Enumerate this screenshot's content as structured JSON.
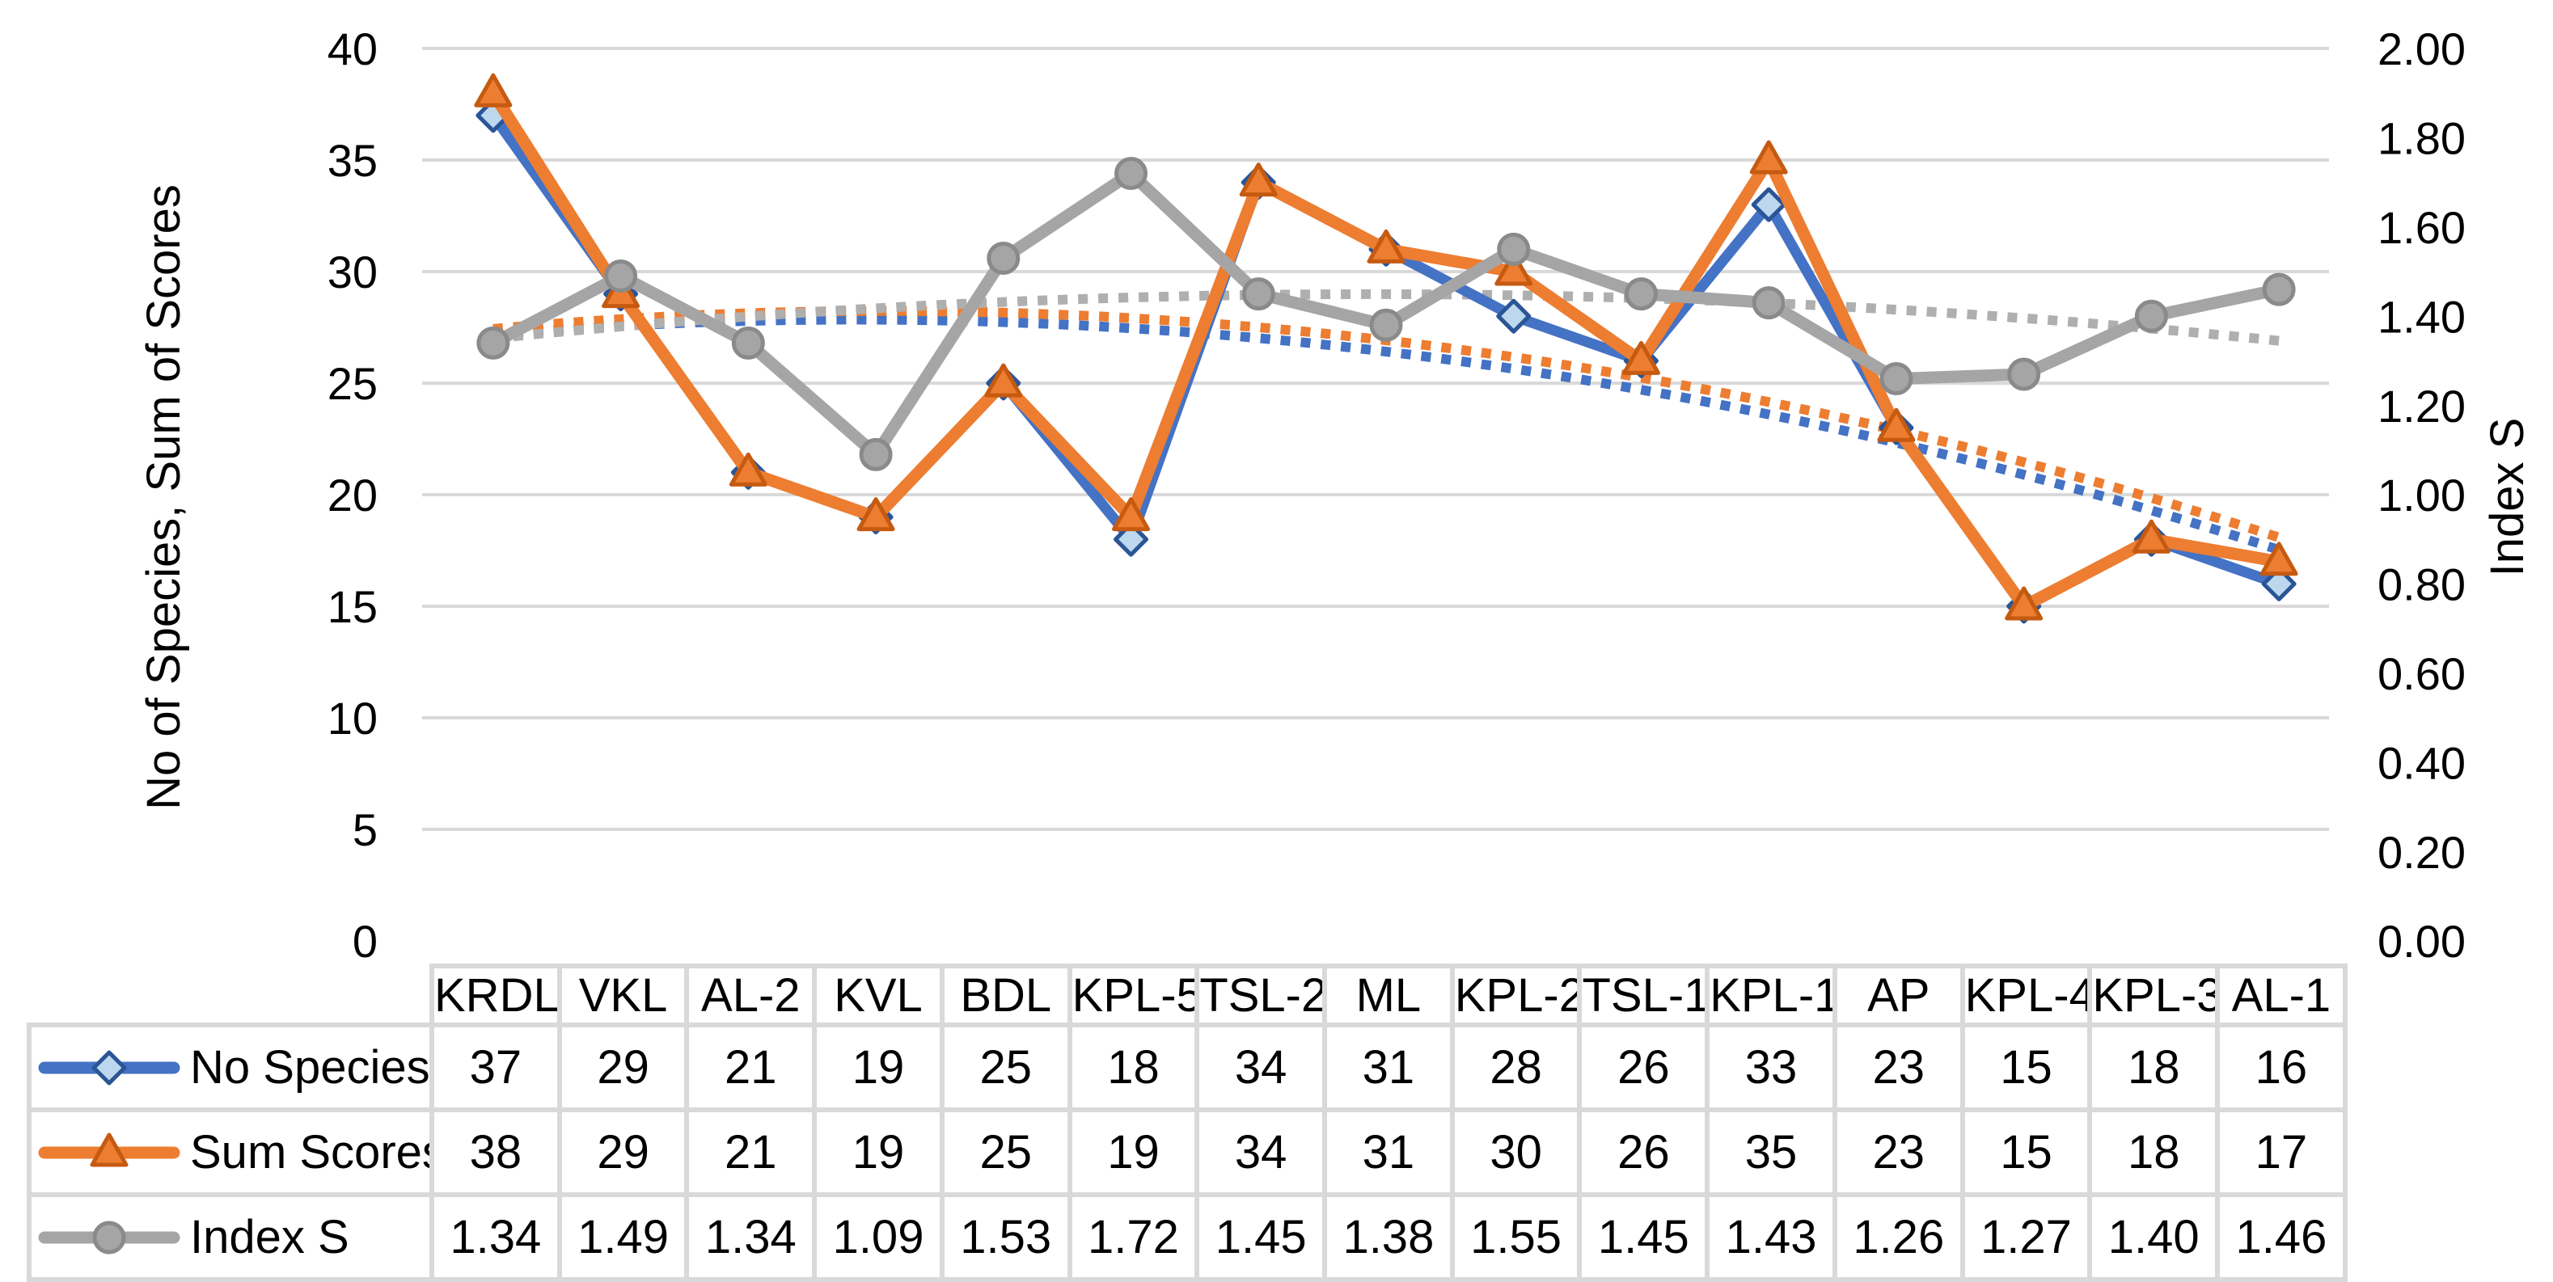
{
  "chart_data": {
    "type": "line",
    "title": "",
    "categories": [
      "KRDL",
      "VKL",
      "AL-2",
      "KVL",
      "BDL",
      "KPL-5",
      "TSL-2",
      "ML",
      "KPL-2",
      "TSL-1",
      "KPL-1",
      "AP",
      "KPL-4",
      "KPL-3",
      "AL-1"
    ],
    "series": [
      {
        "name": "No Species",
        "axis": "left",
        "marker": "diamond",
        "line_color": "#4472C4",
        "marker_fill": "#BDD7EE",
        "marker_stroke": "#2A5596",
        "trend_color": "#4472C4",
        "values": [
          37,
          29,
          21,
          19,
          25,
          18,
          34,
          31,
          28,
          26,
          33,
          23,
          15,
          18,
          16
        ],
        "display": [
          "37",
          "29",
          "21",
          "19",
          "25",
          "18",
          "34",
          "31",
          "28",
          "26",
          "33",
          "23",
          "15",
          "18",
          "16"
        ]
      },
      {
        "name": "Sum Scores",
        "axis": "left",
        "marker": "triangle",
        "line_color": "#ED7D31",
        "marker_fill": "#ED7D31",
        "marker_stroke": "#C55A11",
        "trend_color": "#ED7D31",
        "values": [
          38,
          29,
          21,
          19,
          25,
          19,
          34,
          31,
          30,
          26,
          35,
          23,
          15,
          18,
          17
        ],
        "display": [
          "38",
          "29",
          "21",
          "19",
          "25",
          "19",
          "34",
          "31",
          "30",
          "26",
          "35",
          "23",
          "15",
          "18",
          "17"
        ]
      },
      {
        "name": "Index S",
        "axis": "right",
        "marker": "circle",
        "line_color": "#A5A5A5",
        "marker_fill": "#A5A5A5",
        "marker_stroke": "#8A8A8A",
        "trend_color": "#AFAFAF",
        "values": [
          1.34,
          1.49,
          1.34,
          1.09,
          1.53,
          1.72,
          1.45,
          1.38,
          1.55,
          1.45,
          1.43,
          1.26,
          1.27,
          1.4,
          1.46
        ],
        "display": [
          "1.34",
          "1.49",
          "1.34",
          "1.09",
          "1.53",
          "1.72",
          "1.45",
          "1.38",
          "1.55",
          "1.45",
          "1.43",
          "1.26",
          "1.27",
          "1.40",
          "1.46"
        ]
      }
    ],
    "left_axis": {
      "title": "No of Species, Sum of Scores",
      "min": 0,
      "max": 40,
      "step": 5,
      "ticks": [
        "40",
        "35",
        "30",
        "25",
        "20",
        "15",
        "10",
        "5",
        "0"
      ]
    },
    "right_axis": {
      "title": "Index S",
      "min": 0,
      "max": 2,
      "step": 0.2,
      "ticks": [
        "2.00",
        "1.80",
        "1.60",
        "1.40",
        "1.20",
        "1.00",
        "0.80",
        "0.60",
        "0.40",
        "0.20",
        "0.00"
      ]
    },
    "grid": {
      "horizontal": true,
      "color": "#D9D9D9"
    },
    "trendlines": {
      "type": "polynomial",
      "order": 2,
      "style": "dotted",
      "applies_to": [
        "No Species",
        "Sum Scores",
        "Index S"
      ]
    },
    "legend_position": "table-left"
  }
}
